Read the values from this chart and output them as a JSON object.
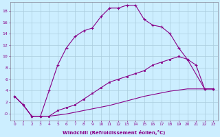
{
  "xlabel": "Windchill (Refroidissement éolien,°C)",
  "bg_color": "#cceeff",
  "grid_color": "#aaccdd",
  "line_color": "#880088",
  "xlim": [
    -0.5,
    23.5
  ],
  "ylim": [
    -1.2,
    19.5
  ],
  "yticks": [
    0,
    2,
    4,
    6,
    8,
    10,
    12,
    14,
    16,
    18
  ],
  "ytick_labels": [
    "-0",
    "2",
    "4",
    "6",
    "8",
    "10",
    "12",
    "14",
    "16",
    "18"
  ],
  "xticks": [
    0,
    1,
    2,
    3,
    4,
    5,
    6,
    7,
    8,
    9,
    10,
    11,
    12,
    13,
    14,
    15,
    16,
    17,
    18,
    19,
    20,
    21,
    22,
    23
  ],
  "curve1": {
    "x": [
      0,
      1,
      2,
      3,
      4,
      5,
      6,
      7,
      8,
      9,
      10,
      11,
      12,
      13,
      14,
      15,
      16,
      17,
      18,
      19,
      20,
      21,
      22,
      23
    ],
    "y": [
      3,
      1.5,
      -0.5,
      -0.5,
      4,
      8.5,
      11.5,
      13.5,
      14.5,
      15.0,
      17.0,
      18.5,
      18.5,
      19.0,
      19.0,
      16.5,
      15.5,
      15.2,
      14.0,
      11.5,
      9.5,
      8.5,
      4.3,
      4.3
    ],
    "has_markers": true
  },
  "curve2": {
    "x": [
      0,
      1,
      2,
      3,
      4,
      5,
      6,
      7,
      8,
      9,
      10,
      11,
      12,
      13,
      14,
      15,
      16,
      17,
      18,
      19,
      20,
      22,
      23
    ],
    "y": [
      3,
      1.5,
      -0.5,
      -0.5,
      -0.5,
      0.5,
      1.0,
      1.5,
      2.5,
      3.5,
      4.5,
      5.5,
      6.0,
      6.5,
      7.0,
      7.5,
      8.5,
      9.0,
      9.5,
      10.0,
      9.5,
      4.3,
      4.3
    ],
    "has_markers": true
  },
  "curve3": {
    "x": [
      0,
      1,
      2,
      3,
      4,
      5,
      6,
      7,
      8,
      9,
      10,
      11,
      12,
      13,
      14,
      15,
      16,
      17,
      18,
      19,
      20,
      22,
      23
    ],
    "y": [
      3.0,
      1.5,
      -0.5,
      -0.5,
      -0.5,
      -0.3,
      -0.1,
      0.2,
      0.5,
      0.8,
      1.1,
      1.4,
      1.8,
      2.2,
      2.6,
      3.0,
      3.3,
      3.6,
      3.9,
      4.1,
      4.3,
      4.3,
      4.3
    ],
    "has_markers": false
  }
}
